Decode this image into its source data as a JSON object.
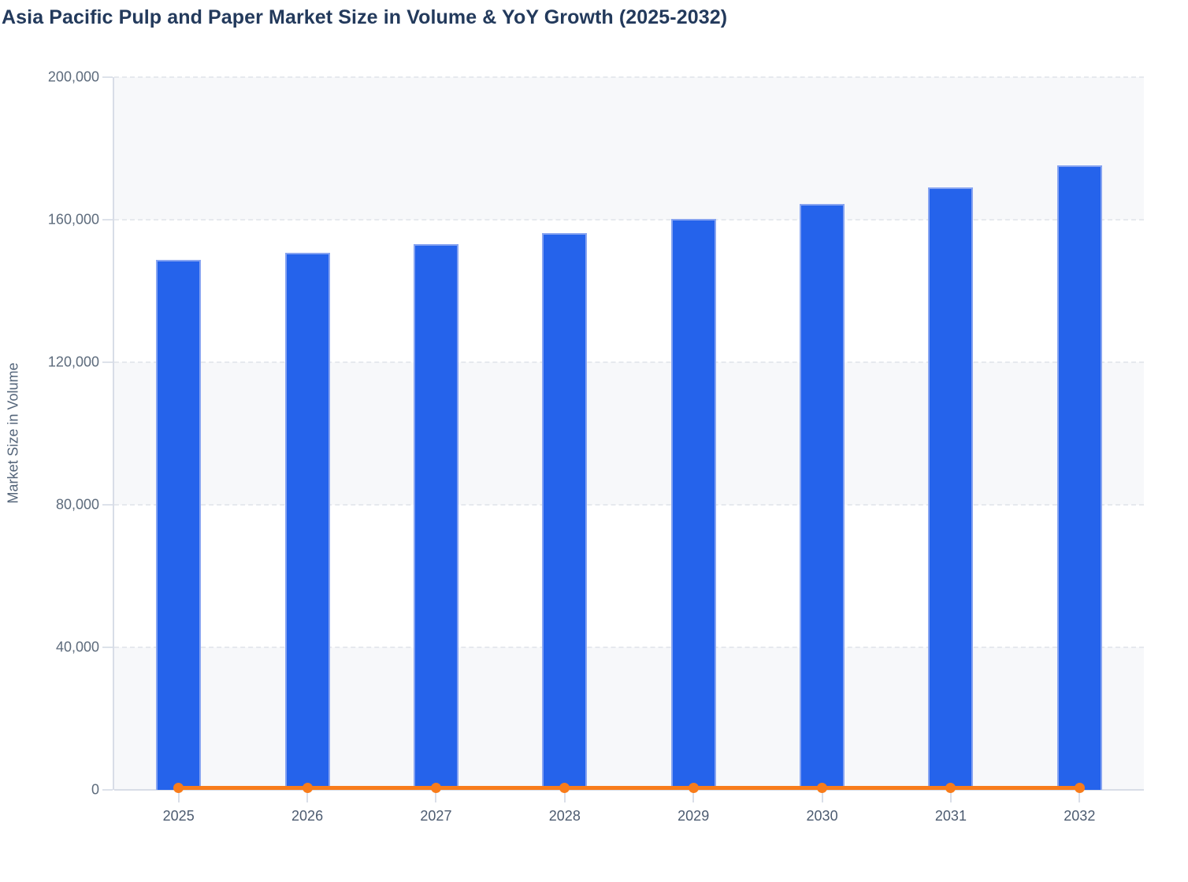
{
  "chart_data": {
    "type": "bar",
    "title": "Asia Pacific Pulp and Paper Market Size in Volume & YoY Growth (2025-2032)",
    "xlabel": "",
    "ylabel": "Market Size in Volume",
    "categories": [
      "2025",
      "2026",
      "2027",
      "2028",
      "2029",
      "2030",
      "2031",
      "2032"
    ],
    "series": [
      {
        "name": "Market Size in Volume",
        "type": "bar",
        "values": [
          148700,
          150700,
          153100,
          156200,
          160200,
          164400,
          169000,
          175200
        ]
      },
      {
        "name": "YoY Growth",
        "type": "line",
        "values": [
          0,
          0,
          0,
          0,
          0,
          0,
          0,
          0
        ]
      }
    ],
    "ylim": [
      0,
      200000
    ],
    "y_ticks": [
      0,
      40000,
      80000,
      120000,
      160000,
      200000
    ],
    "y_tick_labels": [
      "0",
      "40,000",
      "80,000",
      "120,000",
      "160,000",
      "200,000"
    ],
    "grid": "horizontal-dashed",
    "legend": "none",
    "style": {
      "bar_fill": "#2563eb",
      "bar_border": "#87a4f1",
      "line_color": "#f87c1b",
      "band_color": "#f7f8fa",
      "band_alt_color": "#ffffff",
      "grid_color": "#e6e9ee",
      "axis_color": "#d8dde7",
      "title_color": "#233a5c",
      "y_label_color": "#5d6b7c",
      "x_label_color": "#4c5b70"
    }
  }
}
